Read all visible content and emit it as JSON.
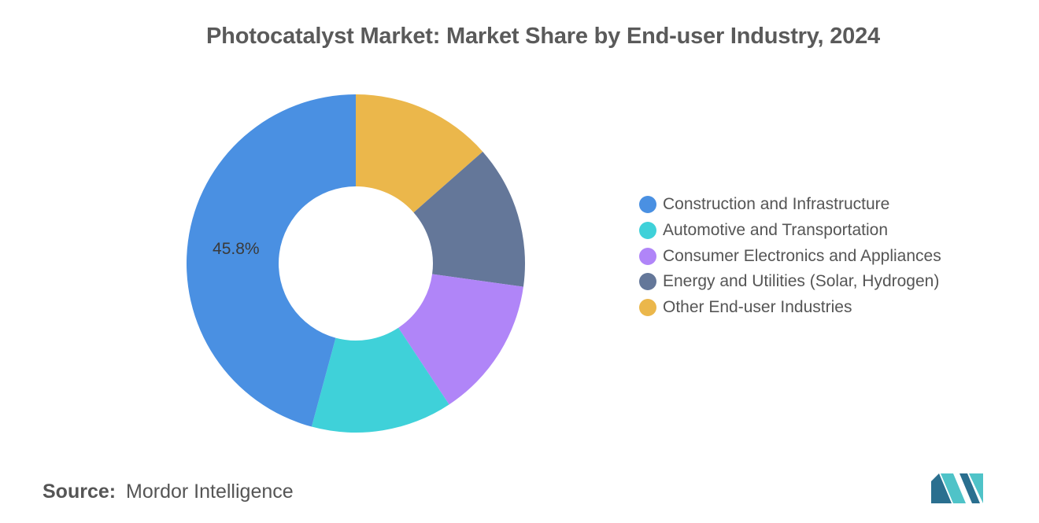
{
  "title": "Photocatalyst Market: Market Share by End-user Industry, 2024",
  "chart_data": {
    "type": "pie",
    "variant": "donut",
    "title": "Photocatalyst Market: Market Share by End-user Industry, 2024",
    "start_angle_deg": 0,
    "direction": "clockwise",
    "legend_position": "right",
    "series": [
      {
        "name": "Other End-user Industries",
        "value": 13.5,
        "color": "#ebb74b"
      },
      {
        "name": "Energy and Utilities (Solar, Hydrogen)",
        "value": 13.7,
        "color": "#647799"
      },
      {
        "name": "Consumer Electronics and Appliances",
        "value": 13.5,
        "color": "#b085f8"
      },
      {
        "name": "Automotive and Transportation",
        "value": 13.5,
        "color": "#3fd1d9"
      },
      {
        "name": "Construction and Infrastructure",
        "value": 45.8,
        "color": "#4a90e2"
      }
    ],
    "legend": [
      {
        "label": "Construction and Infrastructure",
        "color": "#4a90e2"
      },
      {
        "label": "Automotive and Transportation",
        "color": "#3fd1d9"
      },
      {
        "label": "Consumer Electronics and Appliances",
        "color": "#b085f8"
      },
      {
        "label": "Energy and Utilities (Solar, Hydrogen)",
        "color": "#647799"
      },
      {
        "label": "Other End-user Industries",
        "color": "#ebb74b"
      }
    ],
    "data_labels": [
      {
        "series": "Construction and Infrastructure",
        "text": "45.8%"
      }
    ]
  },
  "source": {
    "label": "Source:",
    "value": "Mordor Intelligence"
  },
  "logo": {
    "icon": "mordor-intelligence-logo",
    "colors": [
      "#2a6f8f",
      "#4fc3c8"
    ]
  }
}
